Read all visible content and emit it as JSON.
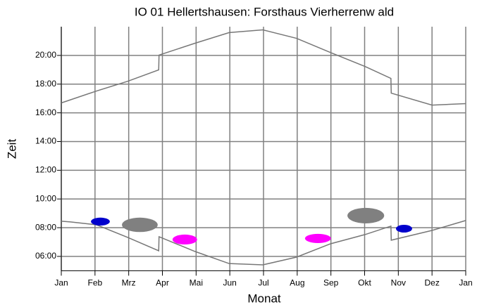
{
  "chart_data": {
    "type": "line",
    "title": "IO 01 Hellertshausen: Forsthaus Vierherrenw ald",
    "xlabel": "Monat",
    "ylabel": "Zeit",
    "xlim": [
      0,
      12
    ],
    "ylim": [
      5,
      22
    ],
    "xticks": [
      {
        "value": 0,
        "label": "Jan"
      },
      {
        "value": 1,
        "label": "Feb"
      },
      {
        "value": 2,
        "label": "Mrz"
      },
      {
        "value": 3,
        "label": "Apr"
      },
      {
        "value": 4,
        "label": "Mai"
      },
      {
        "value": 5,
        "label": "Jun"
      },
      {
        "value": 6,
        "label": "Jul"
      },
      {
        "value": 7,
        "label": "Aug"
      },
      {
        "value": 8,
        "label": "Sep"
      },
      {
        "value": 9,
        "label": "Okt"
      },
      {
        "value": 10,
        "label": "Nov"
      },
      {
        "value": 11,
        "label": "Dez"
      },
      {
        "value": 12,
        "label": "Jan"
      }
    ],
    "yticks": [
      {
        "value": 6,
        "label": "06:00"
      },
      {
        "value": 8,
        "label": "08:00"
      },
      {
        "value": 10,
        "label": "10:00"
      },
      {
        "value": 12,
        "label": "12:00"
      },
      {
        "value": 14,
        "label": "14:00"
      },
      {
        "value": 16,
        "label": "16:00"
      },
      {
        "value": 18,
        "label": "18:00"
      },
      {
        "value": 20,
        "label": "20:00"
      }
    ],
    "grid": true,
    "series": [
      {
        "color": "#777777",
        "x": [
          0,
          1.045,
          1.97,
          2.89,
          2.9,
          3.97,
          4.98,
          5.98,
          6.98,
          7.99,
          9.01,
          9.78,
          9.79,
          11.0,
          12
        ],
        "values": [
          16.69,
          17.52,
          18.2,
          18.99,
          20.02,
          20.85,
          21.59,
          21.78,
          21.19,
          20.2,
          19.23,
          18.4,
          17.37,
          16.54,
          16.64
        ]
      },
      {
        "color": "#777777",
        "x": [
          0,
          0.27,
          1.045,
          1.97,
          2.89,
          2.9,
          3.97,
          4.98,
          5.98,
          6.98,
          7.99,
          9.01,
          9.78,
          9.79,
          11.0,
          12
        ],
        "values": [
          8.45,
          8.4,
          8.2,
          7.32,
          6.39,
          7.37,
          6.34,
          5.5,
          5.41,
          5.95,
          6.88,
          7.52,
          8.11,
          7.13,
          7.81,
          8.5
        ]
      }
    ],
    "regions": [
      {
        "color": "#0000cc",
        "x": [
          0.88,
          1.44
        ],
        "y": [
          8.15,
          8.7
        ]
      },
      {
        "color": "#808080",
        "x": [
          1.8,
          2.86
        ],
        "y": [
          7.7,
          8.7
        ]
      },
      {
        "color": "#ff00ff",
        "x": [
          3.3,
          4.03
        ],
        "y": [
          6.83,
          7.52
        ]
      },
      {
        "color": "#ff00ff",
        "x": [
          7.23,
          8.0
        ],
        "y": [
          6.93,
          7.57
        ]
      },
      {
        "color": "#808080",
        "x": [
          8.49,
          9.58
        ],
        "y": [
          8.3,
          9.38
        ]
      },
      {
        "color": "#0000cc",
        "x": [
          9.93,
          10.41
        ],
        "y": [
          7.66,
          8.2
        ]
      }
    ]
  }
}
